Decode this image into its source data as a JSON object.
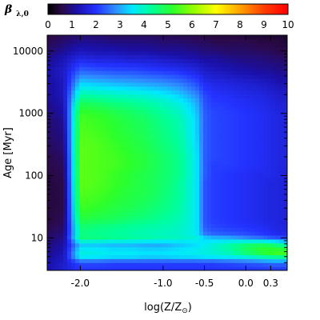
{
  "chart_data": {
    "type": "heatmap",
    "colorbar": {
      "title": "β",
      "title_sub": "λ,0",
      "range": [
        0,
        10
      ],
      "tick_labels": [
        "0",
        "1",
        "2",
        "3",
        "4",
        "5",
        "6",
        "7",
        "8",
        "9",
        "10"
      ],
      "color_stops": [
        {
          "value": 0,
          "color": "#000000"
        },
        {
          "value": 0.6,
          "color": "#2b0a4a"
        },
        {
          "value": 1.2,
          "color": "#1a10a8"
        },
        {
          "value": 2.0,
          "color": "#2332ff"
        },
        {
          "value": 2.8,
          "color": "#2f8cff"
        },
        {
          "value": 3.5,
          "color": "#00e8ff"
        },
        {
          "value": 4.3,
          "color": "#00ff9a"
        },
        {
          "value": 5.2,
          "color": "#2cff2a"
        },
        {
          "value": 6.0,
          "color": "#8cff00"
        },
        {
          "value": 7.0,
          "color": "#ffff00"
        },
        {
          "value": 8.0,
          "color": "#ffa200"
        },
        {
          "value": 9.0,
          "color": "#ff3c00"
        },
        {
          "value": 10,
          "color": "#ff0000"
        }
      ]
    },
    "x_axis": {
      "label": "log(Z/Z",
      "label_sub": "⊙",
      "label_end": ")",
      "range": [
        -2.4,
        0.5
      ],
      "ticks": [
        {
          "value": -2.0,
          "label": "-2.0"
        },
        {
          "value": -1.0,
          "label": "-1.0"
        },
        {
          "value": -0.5,
          "label": "-0.5"
        },
        {
          "value": 0.0,
          "label": "0.0"
        },
        {
          "value": 0.3,
          "label": "0.3"
        }
      ]
    },
    "y_axis": {
      "label": "Age [Myr]",
      "scale": "log",
      "range": [
        3,
        18000
      ],
      "ticks": [
        {
          "value": 10,
          "label": "10"
        },
        {
          "value": 100,
          "label": "100"
        },
        {
          "value": 1000,
          "label": "1000"
        },
        {
          "value": 10000,
          "label": "10000"
        }
      ]
    },
    "grid": false,
    "x_samples": [
      -2.4,
      -2.2,
      -2.0,
      -1.8,
      -1.6,
      -1.4,
      -1.2,
      -1.0,
      -0.8,
      -0.6,
      -0.5,
      -0.4,
      -0.2,
      0.0,
      0.2,
      0.3,
      0.4,
      0.5
    ],
    "y_samples": [
      3,
      4,
      5,
      6,
      8,
      10,
      12,
      15,
      20,
      30,
      50,
      80,
      100,
      150,
      200,
      300,
      500,
      800,
      1000,
      1500,
      2000,
      3000,
      5000,
      8000,
      10000,
      15000,
      18000
    ],
    "z": [
      [
        1.2,
        1.2,
        1.1,
        1.0,
        0.9,
        0.8,
        0.7,
        0.6,
        0.5,
        0.5,
        0.5,
        0.5,
        0.5,
        0.6,
        0.6,
        0.7,
        0.8,
        0.8,
        0.9,
        1.0,
        1.1,
        1.1,
        1.2,
        1.0,
        0.8,
        0.6,
        0.5
      ],
      [
        1.6,
        1.5,
        1.4,
        1.3,
        1.2,
        1.0,
        0.9,
        0.8,
        0.7,
        0.6,
        0.6,
        0.6,
        0.7,
        0.7,
        0.8,
        0.9,
        1.0,
        1.1,
        1.2,
        1.3,
        1.4,
        1.4,
        1.5,
        1.3,
        1.1,
        0.8,
        0.7
      ],
      [
        2.0,
        2.2,
        3.6,
        3.8,
        3.2,
        4.6,
        4.5,
        4.6,
        5.0,
        5.3,
        5.5,
        5.6,
        5.6,
        5.6,
        5.6,
        5.6,
        5.5,
        5.4,
        5.3,
        4.8,
        4.2,
        3.4,
        2.4,
        1.7,
        1.4,
        1.0,
        0.8
      ],
      [
        2.0,
        2.2,
        3.5,
        3.7,
        3.2,
        4.5,
        4.4,
        4.5,
        4.9,
        5.2,
        5.4,
        5.5,
        5.5,
        5.5,
        5.5,
        5.5,
        5.4,
        5.3,
        5.2,
        4.7,
        4.1,
        3.3,
        2.3,
        1.6,
        1.3,
        1.0,
        0.8
      ],
      [
        2.0,
        2.1,
        3.4,
        3.6,
        3.1,
        4.4,
        4.3,
        4.4,
        4.8,
        5.0,
        5.2,
        5.3,
        5.3,
        5.4,
        5.4,
        5.3,
        5.2,
        5.1,
        5.0,
        4.5,
        4.0,
        3.2,
        2.2,
        1.6,
        1.3,
        0.9,
        0.7
      ],
      [
        2.0,
        2.1,
        3.4,
        3.6,
        3.1,
        4.3,
        4.2,
        4.3,
        4.6,
        4.9,
        5.0,
        5.1,
        5.1,
        5.2,
        5.2,
        5.1,
        5.0,
        4.9,
        4.8,
        4.4,
        3.9,
        3.1,
        2.2,
        1.5,
        1.2,
        0.9,
        0.7
      ],
      [
        2.0,
        2.1,
        3.3,
        3.5,
        3.0,
        4.2,
        4.1,
        4.2,
        4.5,
        4.7,
        4.9,
        4.9,
        4.9,
        5.0,
        5.0,
        4.9,
        4.8,
        4.7,
        4.6,
        4.2,
        3.8,
        3.0,
        2.1,
        1.5,
        1.2,
        0.9,
        0.7
      ],
      [
        2.0,
        2.1,
        3.3,
        3.5,
        3.0,
        4.1,
        4.0,
        4.1,
        4.3,
        4.5,
        4.6,
        4.7,
        4.7,
        4.7,
        4.7,
        4.6,
        4.5,
        4.4,
        4.3,
        4.0,
        3.6,
        2.9,
        2.0,
        1.4,
        1.1,
        0.8,
        0.7
      ],
      [
        2.0,
        2.1,
        3.4,
        3.6,
        3.2,
        4.0,
        3.9,
        4.0,
        4.1,
        4.2,
        4.3,
        4.3,
        4.4,
        4.4,
        4.4,
        4.3,
        4.2,
        4.1,
        4.0,
        3.7,
        3.3,
        2.7,
        1.9,
        1.3,
        1.1,
        0.8,
        0.6
      ],
      [
        2.0,
        2.1,
        3.4,
        3.7,
        3.4,
        3.8,
        3.6,
        3.6,
        3.6,
        3.6,
        3.6,
        3.6,
        3.6,
        3.6,
        3.6,
        3.5,
        3.4,
        3.4,
        3.3,
        3.1,
        2.8,
        2.3,
        1.7,
        1.2,
        1.0,
        0.7,
        0.6
      ],
      [
        2.0,
        2.1,
        3.5,
        3.8,
        3.6,
        3.4,
        2.6,
        2.4,
        2.3,
        2.3,
        2.3,
        2.3,
        2.4,
        2.4,
        2.4,
        2.4,
        2.4,
        2.4,
        2.4,
        2.3,
        2.2,
        1.9,
        1.5,
        1.1,
        0.9,
        0.7,
        0.5
      ],
      [
        2.0,
        2.1,
        3.5,
        3.9,
        3.8,
        3.2,
        2.4,
        2.2,
        2.1,
        2.1,
        2.1,
        2.1,
        2.1,
        2.1,
        2.2,
        2.2,
        2.2,
        2.2,
        2.2,
        2.1,
        2.0,
        1.8,
        1.4,
        1.1,
        0.9,
        0.6,
        0.5
      ],
      [
        2.0,
        2.2,
        3.6,
        4.2,
        4.2,
        3.1,
        2.3,
        2.1,
        2.0,
        2.0,
        2.0,
        2.0,
        2.0,
        2.1,
        2.1,
        2.1,
        2.1,
        2.1,
        2.1,
        2.0,
        1.9,
        1.7,
        1.3,
        1.0,
        0.8,
        0.6,
        0.5
      ],
      [
        2.0,
        2.3,
        3.8,
        4.8,
        4.6,
        2.8,
        2.2,
        2.0,
        1.9,
        1.9,
        1.9,
        1.9,
        1.9,
        2.0,
        2.0,
        2.0,
        2.0,
        2.0,
        2.0,
        1.9,
        1.8,
        1.6,
        1.2,
        0.9,
        0.8,
        0.6,
        0.4
      ],
      [
        2.0,
        2.4,
        4.1,
        5.3,
        4.8,
        2.6,
        2.0,
        1.9,
        1.8,
        1.8,
        1.8,
        1.8,
        1.8,
        1.9,
        1.9,
        1.9,
        1.9,
        1.9,
        1.9,
        1.8,
        1.7,
        1.5,
        1.1,
        0.9,
        0.7,
        0.5,
        0.4
      ],
      [
        2.0,
        2.5,
        4.3,
        5.5,
        4.6,
        2.4,
        1.9,
        1.8,
        1.7,
        1.7,
        1.7,
        1.7,
        1.8,
        1.8,
        1.8,
        1.8,
        1.8,
        1.8,
        1.8,
        1.7,
        1.6,
        1.4,
        1.1,
        0.8,
        0.7,
        0.5,
        0.4
      ],
      [
        2.0,
        2.5,
        4.4,
        5.6,
        4.3,
        2.3,
        1.8,
        1.7,
        1.7,
        1.7,
        1.7,
        1.7,
        1.7,
        1.7,
        1.7,
        1.7,
        1.7,
        1.7,
        1.7,
        1.6,
        1.5,
        1.3,
        1.0,
        0.8,
        0.6,
        0.5,
        0.4
      ],
      [
        2.0,
        2.5,
        4.4,
        5.6,
        4.0,
        2.2,
        1.8,
        1.7,
        1.6,
        1.6,
        1.6,
        1.6,
        1.6,
        1.7,
        1.7,
        1.7,
        1.7,
        1.7,
        1.7,
        1.6,
        1.5,
        1.3,
        1.0,
        0.7,
        0.6,
        0.4,
        0.3
      ]
    ]
  }
}
